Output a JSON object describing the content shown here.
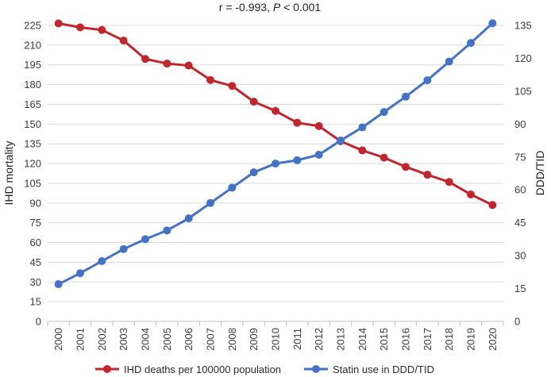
{
  "chart_data": {
    "type": "line",
    "title_prefix": "r = -0.993, ",
    "title_p": "P",
    "title_suffix": " < 0.001",
    "ylabel_left": "IHD mortality",
    "ylabel_right": "DDD/TID",
    "ylim_left": [
      0,
      225
    ],
    "ylim_right": [
      0,
      135
    ],
    "yticks_left": [
      0,
      15,
      30,
      45,
      60,
      75,
      90,
      105,
      120,
      135,
      150,
      165,
      180,
      195,
      210,
      225
    ],
    "yticks_right": [
      0,
      15,
      30,
      45,
      60,
      75,
      90,
      105,
      120,
      135
    ],
    "categories": [
      "2000",
      "2001",
      "2002",
      "2003",
      "2004",
      "2005",
      "2006",
      "2007",
      "2008",
      "2009",
      "2010",
      "2011",
      "2012",
      "2013",
      "2014",
      "2015",
      "2016",
      "2017",
      "2018",
      "2019",
      "2020"
    ],
    "series": [
      {
        "name": "IHD deaths per 100000 population",
        "axis": "left",
        "color": "#c0262d",
        "values": [
          226.5,
          223.5,
          221.5,
          213.5,
          199.5,
          196,
          194.5,
          183.5,
          179,
          167,
          160,
          151,
          148.5,
          137,
          130,
          124.5,
          117.5,
          111.5,
          106,
          96.5,
          88.5
        ]
      },
      {
        "name": "Statin use in DDD/TID",
        "axis": "right",
        "color": "#4472c4",
        "values": [
          17,
          22,
          27.5,
          33,
          37.5,
          41.5,
          47,
          54,
          61,
          68,
          72,
          73.5,
          76,
          82.5,
          88.5,
          95.5,
          102.5,
          110,
          118.5,
          127,
          136
        ]
      }
    ]
  }
}
